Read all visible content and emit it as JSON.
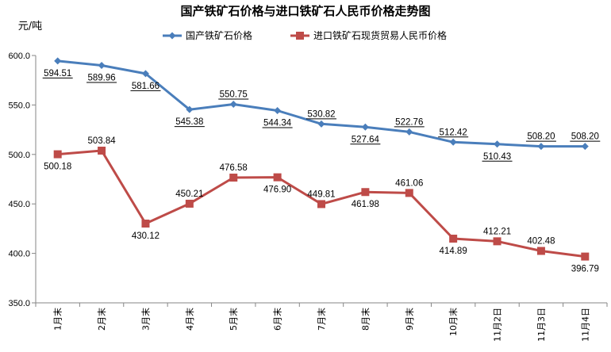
{
  "chart_data": {
    "type": "line",
    "title": "国产铁矿石价格与进口铁矿石人民币价格走势图",
    "ylabel": "元/吨",
    "xlabel": "",
    "ylim": [
      350,
      600
    ],
    "yticks": [
      "600.0",
      "550.0",
      "500.0",
      "450.0",
      "400.0",
      "350.0"
    ],
    "grid": false,
    "legend": "top-center",
    "categories": [
      "1月末",
      "2月末",
      "3月末",
      "4月末",
      "5月末",
      "6月末",
      "7月末",
      "8月末",
      "9月末",
      "10月末",
      "11月2日",
      "11月3日",
      "11月4日"
    ],
    "series": [
      {
        "name": "国产铁矿石价格",
        "color": "#4a7ebb",
        "marker": "diamond",
        "values": [
          594.51,
          589.96,
          581.66,
          545.38,
          550.75,
          544.34,
          530.82,
          527.64,
          522.76,
          512.42,
          510.43,
          508.2,
          508.2
        ],
        "labels": [
          "594.51",
          "589.96",
          "581.66",
          "545.38",
          "550.75",
          "544.34",
          "530.82",
          "527.64",
          "522.76",
          "512.42",
          "510.43",
          "508.20",
          "508.20"
        ]
      },
      {
        "name": "进口铁矿石现货贸易人民币价格",
        "color": "#be4b48",
        "marker": "square",
        "values": [
          500.18,
          503.84,
          430.12,
          450.21,
          476.58,
          476.9,
          449.81,
          461.98,
          461.06,
          414.89,
          412.21,
          402.48,
          396.79
        ],
        "labels": [
          "500.18",
          "503.84",
          "430.12",
          "450.21",
          "476.58",
          "476.90",
          "449.81",
          "461.98",
          "461.06",
          "414.89",
          "412.21",
          "402.48",
          "396.79"
        ]
      }
    ]
  }
}
